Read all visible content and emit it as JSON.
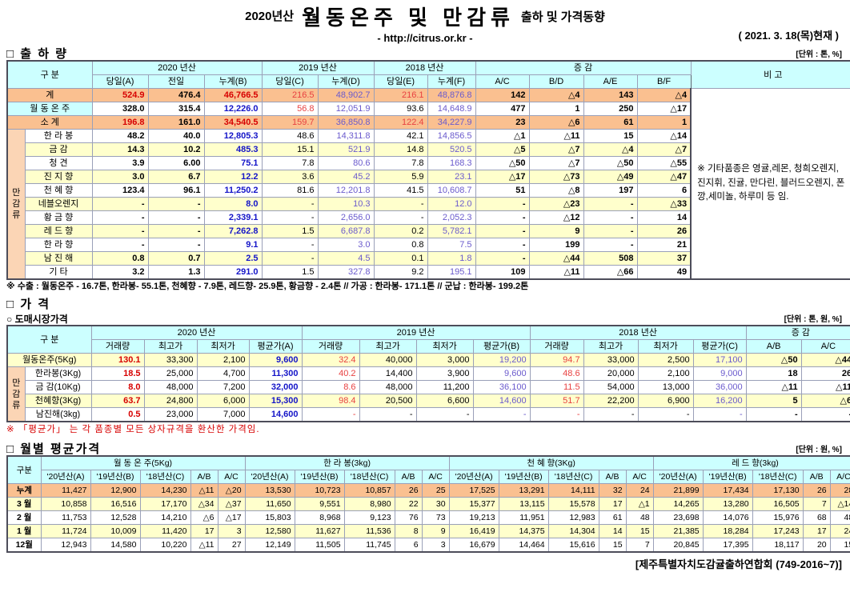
{
  "page_title": {
    "vintage": "2020년산",
    "main": "월동온주 및 만감류",
    "suffix": "출하 및 가격동향",
    "url": "- http://citrus.or.kr -",
    "date": "( 2021. 3. 18(목)현재 )"
  },
  "colors": {
    "header_bg": "#CCFFFF",
    "total_row_bg": "#FAC090",
    "stripe_row_bg": "#FFFFCC",
    "group_cell_bg": "#FBD5B5",
    "red": "#D70000",
    "light_red": "#E84040",
    "blue": "#1414C8",
    "purple": "#6A5ACD"
  },
  "shipment": {
    "section_title": "□ 출 하 량",
    "unit": "[단위 : 톤, %]",
    "header": {
      "gubun": "구      분",
      "y2020": "2020 년산",
      "y2019": "2019 년산",
      "y2018": "2018 년산",
      "diff": "증      감",
      "note": "비  고",
      "sub": [
        "당일(A)",
        "전일",
        "누계(B)",
        "당일(C)",
        "누계(D)",
        "당일(E)",
        "누계(F)",
        "A/C",
        "B/D",
        "A/E",
        "B/F"
      ]
    },
    "group_label": "만감류",
    "rows": [
      {
        "label": "계",
        "type": "total",
        "v": [
          "524.9",
          "476.4",
          "46,766.5",
          "216.5",
          "48,902.7",
          "216.1",
          "48,876.8",
          "142",
          "△4",
          "143",
          "△4"
        ]
      },
      {
        "label": "월 동 온 주",
        "type": "wd",
        "v": [
          "328.0",
          "315.4",
          "12,226.0",
          "56.8",
          "12,051.9",
          "93.6",
          "14,648.9",
          "477",
          "1",
          "250",
          "△17"
        ]
      },
      {
        "label": "소    계",
        "type": "total",
        "v": [
          "196.8",
          "161.0",
          "34,540.5",
          "159.7",
          "36,850.8",
          "122.4",
          "34,227.9",
          "23",
          "△6",
          "61",
          "1"
        ]
      },
      {
        "label": "한 라 봉",
        "type": "sp",
        "v": [
          "48.2",
          "40.0",
          "12,805.3",
          "48.6",
          "14,311.8",
          "42.1",
          "14,856.5",
          "△1",
          "△11",
          "15",
          "△14"
        ]
      },
      {
        "label": "금    감",
        "type": "sp",
        "v": [
          "14.3",
          "10.2",
          "485.3",
          "15.1",
          "521.9",
          "14.8",
          "520.5",
          "△5",
          "△7",
          "△4",
          "△7"
        ]
      },
      {
        "label": "청    견",
        "type": "sp",
        "v": [
          "3.9",
          "6.00",
          "75.1",
          "7.8",
          "80.6",
          "7.8",
          "168.3",
          "△50",
          "△7",
          "△50",
          "△55"
        ]
      },
      {
        "label": "진 지 향",
        "type": "sp",
        "v": [
          "3.0",
          "6.7",
          "12.2",
          "3.6",
          "45.2",
          "5.9",
          "23.1",
          "△17",
          "△73",
          "△49",
          "△47"
        ]
      },
      {
        "label": "천 혜 향",
        "type": "sp",
        "v": [
          "123.4",
          "96.1",
          "11,250.2",
          "81.6",
          "12,201.8",
          "41.5",
          "10,608.7",
          "51",
          "△8",
          "197",
          "6"
        ]
      },
      {
        "label": "네블오렌지",
        "type": "sp",
        "v": [
          "-",
          "-",
          "8.0",
          "-",
          "10.3",
          "-",
          "12.0",
          "-",
          "△23",
          "-",
          "△33"
        ]
      },
      {
        "label": "황 금 향",
        "type": "sp",
        "v": [
          "-",
          "-",
          "2,339.1",
          "-",
          "2,656.0",
          "-",
          "2,052.3",
          "-",
          "△12",
          "-",
          "14"
        ]
      },
      {
        "label": "레 드 향",
        "type": "sp",
        "v": [
          "-",
          "-",
          "7,262.8",
          "1.5",
          "6,687.8",
          "0.2",
          "5,782.1",
          "-",
          "9",
          "-",
          "26"
        ]
      },
      {
        "label": "한 라 향",
        "type": "sp",
        "v": [
          "-",
          "-",
          "9.1",
          "-",
          "3.0",
          "0.8",
          "7.5",
          "-",
          "199",
          "-",
          "21"
        ]
      },
      {
        "label": "남 진 해",
        "type": "sp",
        "v": [
          "0.8",
          "0.7",
          "2.5",
          "-",
          "4.5",
          "0.1",
          "1.8",
          "-",
          "△44",
          "508",
          "37"
        ]
      },
      {
        "label": "기    타",
        "type": "sp",
        "v": [
          "3.2",
          "1.3",
          "291.0",
          "1.5",
          "327.8",
          "9.2",
          "195.1",
          "109",
          "△11",
          "△66",
          "49"
        ]
      }
    ],
    "remark": "※ 기타품종은 영귤,레몬, 청희오렌지, 진지휘, 진귤, 만다린, 블러드오렌지, 폰깡,세미놀, 하루미 등 임.",
    "export_note": "※ 수출 : 월동온주 - 16.7톤, 한라봉- 55.1톤, 천혜향 - 7.9톤, 레드향- 25.9톤, 황금향 - 2.4톤  //  가공 : 한라봉- 171.1톤  //  군납 : 한라봉- 199.2톤"
  },
  "price": {
    "section_title": "□ 가      격",
    "sub_section_title": "○ 도매시장가격",
    "unit": "[단위 : 톤, 원, %]",
    "header": {
      "gubun": "구      분",
      "y2020": "2020 년산",
      "y2019": "2019 년산",
      "y2018": "2018 년산",
      "diff": "증  감",
      "sub": [
        "거래량",
        "최고가",
        "최저가",
        "평균가(A)",
        "거래량",
        "최고가",
        "최저가",
        "평균가(B)",
        "거래량",
        "최고가",
        "최저가",
        "평균가(C)",
        "A/B",
        "A/C"
      ]
    },
    "group_label": "만감류",
    "rows": [
      {
        "label": "월동온주(5Kg)",
        "v": [
          "130.1",
          "33,300",
          "2,100",
          "9,600",
          "32.4",
          "40,000",
          "3,000",
          "19,200",
          "94.7",
          "33,000",
          "2,500",
          "17,100",
          "△50",
          "△44"
        ]
      },
      {
        "label": "한라봉(3Kg)",
        "v": [
          "18.5",
          "25,000",
          "4,700",
          "11,300",
          "40.2",
          "14,400",
          "3,900",
          "9,600",
          "48.6",
          "20,000",
          "2,100",
          "9,000",
          "18",
          "26"
        ]
      },
      {
        "label": "금 감(10Kg)",
        "v": [
          "8.0",
          "48,000",
          "7,200",
          "32,000",
          "8.6",
          "48,000",
          "11,200",
          "36,100",
          "11.5",
          "54,000",
          "13,000",
          "36,000",
          "△11",
          "△11"
        ]
      },
      {
        "label": "천혜향(3Kg)",
        "v": [
          "63.7",
          "24,800",
          "6,000",
          "15,300",
          "98.4",
          "20,500",
          "6,600",
          "14,600",
          "51.7",
          "22,200",
          "6,900",
          "16,200",
          "5",
          "△6"
        ]
      },
      {
        "label": "남진해(3kg)",
        "v": [
          "0.5",
          "23,000",
          "7,000",
          "14,600",
          "-",
          "-",
          "-",
          "-",
          "-",
          "-",
          "-",
          "-",
          "-",
          "-"
        ]
      }
    ],
    "price_note": "※  「평균가」 는 각 품종별 모든 상자규격을 환산한 가격임."
  },
  "monthly": {
    "section_title": "□ 월별 평균가격",
    "unit": "[단위 : 원, %]",
    "gubun": "구분",
    "groups": [
      "월 동 온 주(5Kg)",
      "한 라 봉(3kg)",
      "천 혜 향(3Kg)",
      "레 드 향(3kg)"
    ],
    "sub": [
      "'20년산(A)",
      "'19년산(B)",
      "'18년산(C)",
      "A/B",
      "A/C"
    ],
    "rows": [
      {
        "label": "누계",
        "type": "total",
        "v": [
          "11,427",
          "12,900",
          "14,230",
          "△11",
          "△20",
          "13,530",
          "10,723",
          "10,857",
          "26",
          "25",
          "17,525",
          "13,291",
          "14,111",
          "32",
          "24",
          "21,899",
          "17,434",
          "17,130",
          "26",
          "28"
        ]
      },
      {
        "label": "3 월",
        "type": "stripe",
        "v": [
          "10,858",
          "16,516",
          "17,170",
          "△34",
          "△37",
          "11,650",
          "9,551",
          "8,980",
          "22",
          "30",
          "15,377",
          "13,115",
          "15,578",
          "17",
          "△1",
          "14,265",
          "13,280",
          "16,505",
          "7",
          "△14"
        ]
      },
      {
        "label": "2 월",
        "type": "plain",
        "v": [
          "11,753",
          "12,528",
          "14,210",
          "△6",
          "△17",
          "15,803",
          "8,968",
          "9,123",
          "76",
          "73",
          "19,213",
          "11,951",
          "12,983",
          "61",
          "48",
          "23,698",
          "14,076",
          "15,976",
          "68",
          "48"
        ]
      },
      {
        "label": "1 월",
        "type": "stripe",
        "v": [
          "11,724",
          "10,009",
          "11,420",
          "17",
          "3",
          "12,580",
          "11,627",
          "11,536",
          "8",
          "9",
          "16,419",
          "14,375",
          "14,304",
          "14",
          "15",
          "21,385",
          "18,284",
          "17,243",
          "17",
          "24"
        ]
      },
      {
        "label": "12월",
        "type": "plain",
        "v": [
          "12,943",
          "14,580",
          "10,220",
          "△11",
          "27",
          "12,149",
          "11,505",
          "11,745",
          "6",
          "3",
          "16,679",
          "14,464",
          "15,616",
          "15",
          "7",
          "20,845",
          "17,395",
          "18,117",
          "20",
          "15"
        ]
      }
    ]
  },
  "footer": "[제주특별자치도감귤출하연합회 (749-2016~7)]"
}
